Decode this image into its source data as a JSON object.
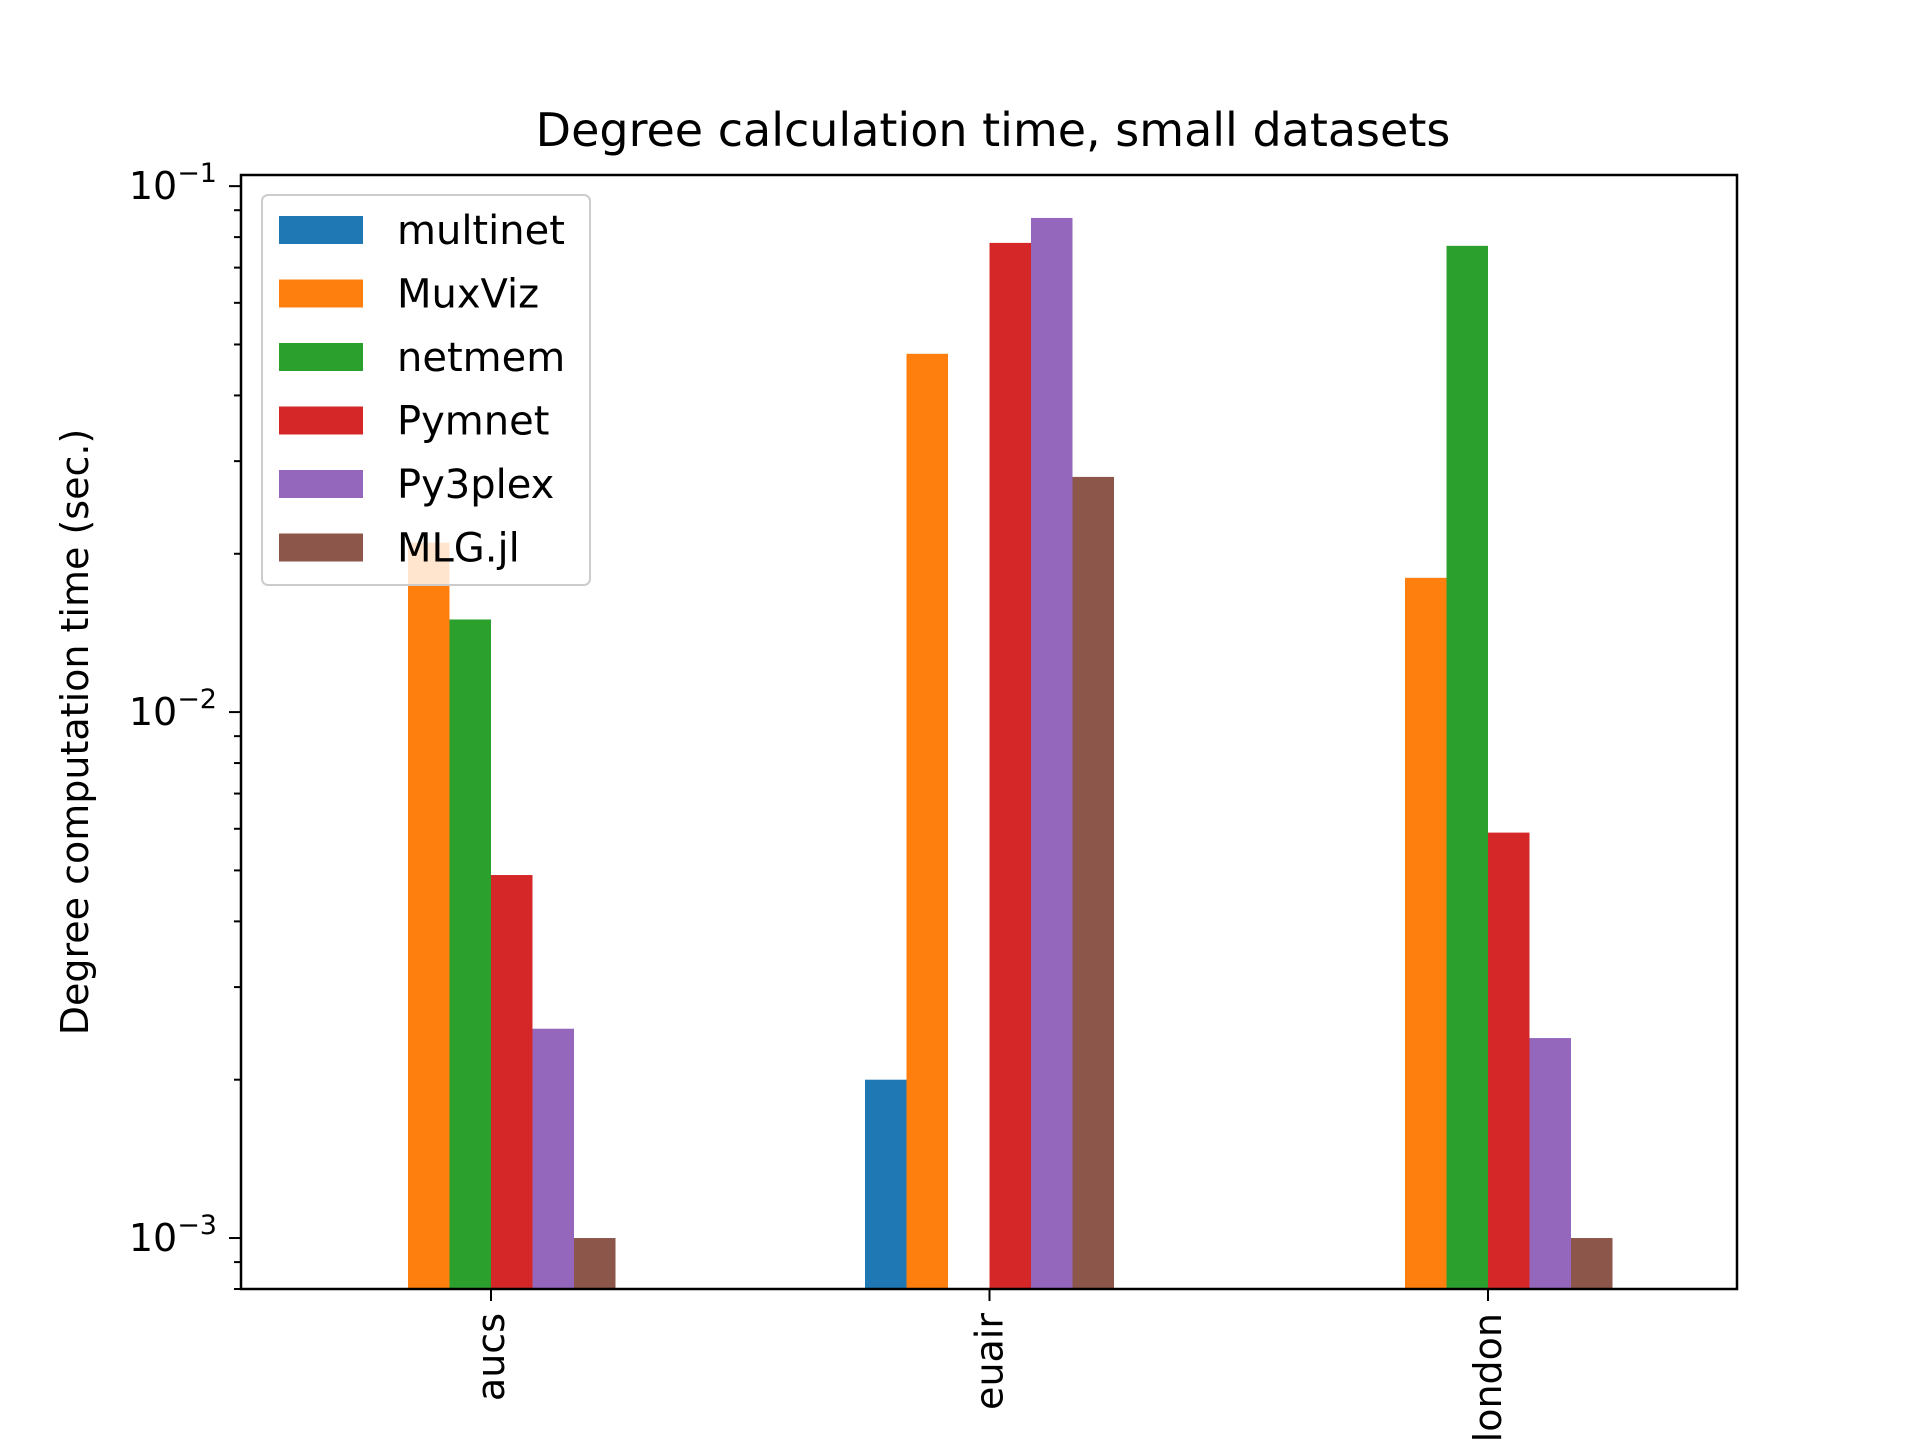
{
  "chart_data": {
    "type": "bar",
    "title": "Degree calculation time, small datasets",
    "xlabel": "",
    "ylabel": "Degree computation time (sec.)",
    "yscale": "log",
    "ylim": [
      0.0008,
      0.105
    ],
    "yticks": [
      {
        "value": 0.1,
        "base": "10",
        "exp": "−1"
      },
      {
        "value": 0.01,
        "base": "10",
        "exp": "−2"
      },
      {
        "value": 0.001,
        "base": "10",
        "exp": "−3"
      }
    ],
    "categories": [
      "aucs",
      "euair",
      "london"
    ],
    "series": [
      {
        "name": "multinet",
        "color": "#1f77b4",
        "values": [
          null,
          0.002,
          null
        ]
      },
      {
        "name": "MuxViz",
        "color": "#ff7f0e",
        "values": [
          0.021,
          0.048,
          0.018
        ]
      },
      {
        "name": "netmem",
        "color": "#2ca02c",
        "values": [
          0.015,
          null,
          0.077
        ]
      },
      {
        "name": "Pymnet",
        "color": "#d62728",
        "values": [
          0.0049,
          0.078,
          0.0059
        ]
      },
      {
        "name": "Py3plex",
        "color": "#9467bd",
        "values": [
          0.0025,
          0.087,
          0.0024
        ]
      },
      {
        "name": "MLG.jl",
        "color": "#8c564b",
        "values": [
          0.001,
          0.028,
          0.001
        ]
      }
    ],
    "grid": false,
    "legend_position": "top-left"
  }
}
